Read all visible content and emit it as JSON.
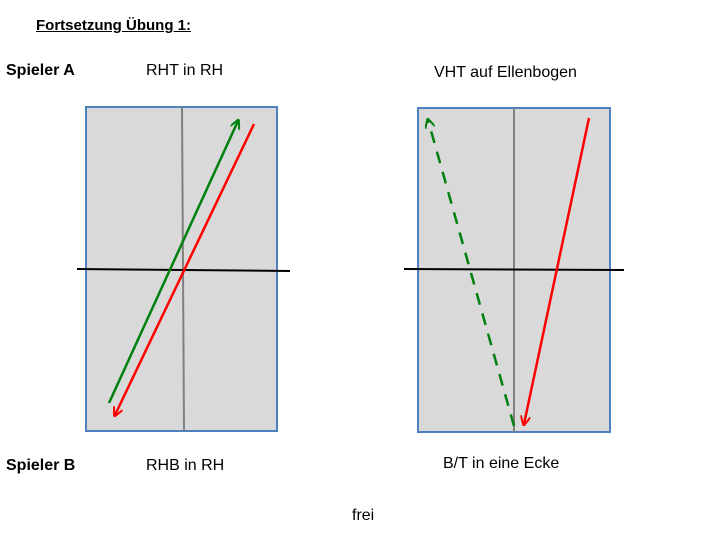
{
  "title": "Fortsetzung Übung 1:",
  "player_a": "Spieler A",
  "player_b": "Spieler B",
  "diagrams": [
    {
      "top_label": "RHT in RH",
      "bottom_label": "RHB in RH"
    },
    {
      "top_label": "VHT auf Ellenbogen",
      "bottom_label": "B/T in eine Ecke"
    }
  ],
  "footer_note": "frei",
  "colors": {
    "table_fill": "#d9d9d9",
    "table_border": "#4f81bd",
    "center_line": "#808080",
    "net": "#000000",
    "arrow_green": "#00800f",
    "arrow_red": "#ff0000"
  }
}
